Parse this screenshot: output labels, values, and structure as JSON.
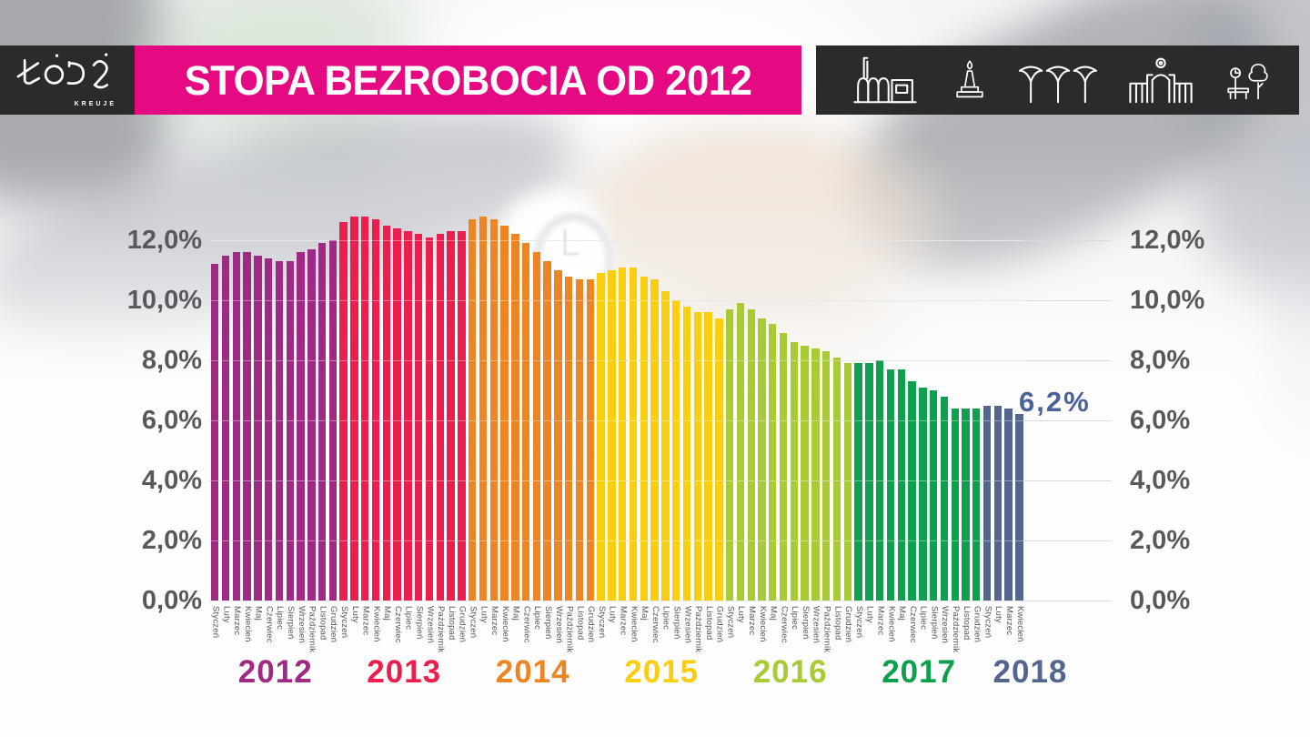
{
  "header": {
    "title": "STOPA BEZROBOCIA OD 2012",
    "logo": {
      "city": "ŁÓDŹ",
      "tagline": "KREUJE"
    },
    "landmark_icons": [
      "ec1-factory-icon",
      "monument-icon",
      "canopy-columns-icon",
      "city-gate-icon",
      "park-icon"
    ]
  },
  "axis": {
    "tick_labels": [
      "12,0%",
      "10,0%",
      "8,0%",
      "6,0%",
      "4,0%",
      "2,0%",
      "0,0%"
    ],
    "tick_values": [
      12,
      10,
      8,
      6,
      4,
      2,
      0
    ],
    "sides": "both"
  },
  "colors": {
    "banner_pink": "#e50a81",
    "header_black": "#2b2b2d",
    "axis_gray": "#58595c",
    "gridline": "#d9dadd",
    "annotation_navy": "#4a6298"
  },
  "chart_data": {
    "type": "bar",
    "title": "STOPA BEZROBOCIA OD 2012",
    "unit": "%",
    "ylim": [
      0,
      13
    ],
    "grid": true,
    "last_value_label": "6,2%",
    "months": [
      "Styczeń",
      "Luty",
      "Marzec",
      "Kwiecień",
      "Maj",
      "Czerwiec",
      "Lipiec",
      "Sierpień",
      "Wrzesień",
      "Październik",
      "Listopad",
      "Grudzień"
    ],
    "series": [
      {
        "year": "2012",
        "color": "#9e2a84",
        "values": [
          11.2,
          11.5,
          11.6,
          11.6,
          11.5,
          11.4,
          11.3,
          11.3,
          11.6,
          11.7,
          11.9,
          12.0
        ]
      },
      {
        "year": "2013",
        "color": "#eb1e4e",
        "values": [
          12.6,
          12.8,
          12.8,
          12.7,
          12.5,
          12.4,
          12.3,
          12.2,
          12.1,
          12.2,
          12.3,
          12.3
        ]
      },
      {
        "year": "2014",
        "color": "#ee8524",
        "values": [
          12.7,
          12.8,
          12.7,
          12.5,
          12.2,
          11.9,
          11.6,
          11.3,
          11.0,
          10.8,
          10.7,
          10.7
        ]
      },
      {
        "year": "2015",
        "color": "#f9cd10",
        "values": [
          10.9,
          11.0,
          11.1,
          11.1,
          10.8,
          10.7,
          10.3,
          10.0,
          9.8,
          9.6,
          9.6,
          9.4
        ]
      },
      {
        "year": "2016",
        "color": "#a8ca35",
        "values": [
          9.7,
          9.9,
          9.7,
          9.4,
          9.2,
          8.9,
          8.6,
          8.5,
          8.4,
          8.3,
          8.1,
          7.9
        ]
      },
      {
        "year": "2017",
        "color": "#0ea04f",
        "values": [
          7.9,
          7.9,
          8.0,
          7.7,
          7.7,
          7.3,
          7.1,
          7.0,
          6.8,
          6.4,
          6.4,
          6.4
        ]
      },
      {
        "year": "2018",
        "color": "#54658e",
        "values": [
          6.5,
          6.5,
          6.4,
          6.2
        ]
      }
    ]
  }
}
